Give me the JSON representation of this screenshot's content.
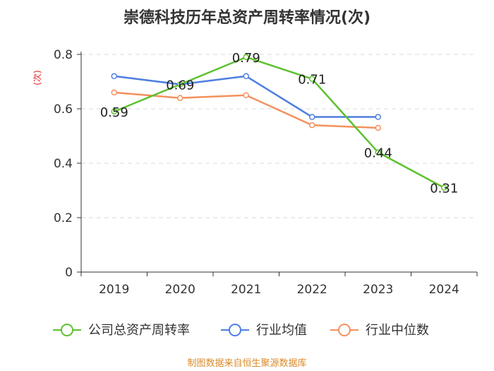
{
  "chart_data": {
    "type": "line",
    "title": "崇德科技历年总资产周转率情况(次)",
    "ylabel": "(次)",
    "xlabel": "",
    "categories": [
      "2019",
      "2020",
      "2021",
      "2022",
      "2023",
      "2024"
    ],
    "ylim": [
      0,
      0.8
    ],
    "yticks": [
      0,
      0.2,
      0.4,
      0.6,
      0.8
    ],
    "ytick_labels": [
      "0",
      "0.2",
      "0.4",
      "0.6",
      "0.8"
    ],
    "grid": true,
    "legend_position": "bottom",
    "series": [
      {
        "name": "公司总资产周转率",
        "color": "#5cc12e",
        "values": [
          0.59,
          0.69,
          0.79,
          0.71,
          0.44,
          0.31
        ],
        "labels": [
          "0.59",
          "0.69",
          "0.79",
          "0.71",
          "0.44",
          "0.31"
        ],
        "show_labels": true
      },
      {
        "name": "行业均值",
        "color": "#4e7ee0",
        "values": [
          0.72,
          0.69,
          0.72,
          0.57,
          0.57,
          null
        ],
        "show_labels": false
      },
      {
        "name": "行业中位数",
        "color": "#f4915e",
        "values": [
          0.66,
          0.64,
          0.65,
          0.54,
          0.53,
          null
        ],
        "show_labels": false
      }
    ],
    "source": "制图数据来自恒生聚源数据库"
  }
}
